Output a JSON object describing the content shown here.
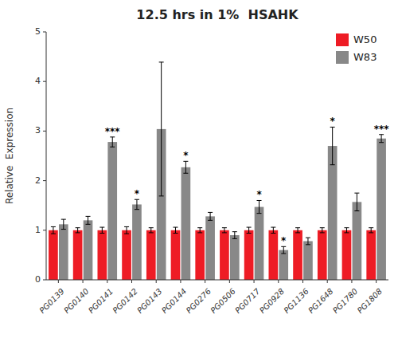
{
  "chart_data": {
    "type": "bar",
    "title": "12.5 hrs in 1%  HSAHK",
    "ylabel": "Relative  Expression",
    "categories": [
      "PG0139",
      "PG0140",
      "PG0141",
      "PG0142",
      "PG0143",
      "PG0144",
      "PG0276",
      "PG0506",
      "PG0717",
      "PG0928",
      "PG1136",
      "PG1648",
      "PG1780",
      "PG1808"
    ],
    "series": [
      {
        "name": "W50",
        "color": "#ee1c25",
        "values": [
          1.0,
          1.0,
          1.0,
          1.0,
          1.0,
          1.0,
          1.0,
          1.0,
          1.0,
          1.0,
          1.0,
          1.0,
          1.0,
          1.0
        ],
        "errors": [
          0.07,
          0.05,
          0.06,
          0.07,
          0.05,
          0.06,
          0.05,
          0.05,
          0.06,
          0.06,
          0.05,
          0.05,
          0.05,
          0.05
        ]
      },
      {
        "name": "W83",
        "color": "#888888",
        "values": [
          1.12,
          1.2,
          2.78,
          1.52,
          3.04,
          2.27,
          1.28,
          0.9,
          1.47,
          0.6,
          0.78,
          2.7,
          1.57,
          2.85
        ],
        "errors": [
          0.1,
          0.08,
          0.1,
          0.1,
          1.35,
          0.12,
          0.08,
          0.07,
          0.13,
          0.07,
          0.07,
          0.38,
          0.18,
          0.08
        ]
      }
    ],
    "annotations": [
      {
        "text": "***",
        "category": "PG0141",
        "series": "W83"
      },
      {
        "text": "*",
        "category": "PG0142",
        "series": "W83"
      },
      {
        "text": "*",
        "category": "PG0144",
        "series": "W83"
      },
      {
        "text": "*",
        "category": "PG0717",
        "series": "W83"
      },
      {
        "text": "*",
        "category": "PG0928",
        "series": "W83"
      },
      {
        "text": "*",
        "category": "PG1648",
        "series": "W83"
      },
      {
        "text": "***",
        "category": "PG1808",
        "series": "W83"
      }
    ],
    "ylim": [
      0,
      5.0
    ],
    "yticks": [
      0,
      1,
      2,
      3,
      4,
      5
    ],
    "legend": "upper right",
    "grid": false
  }
}
